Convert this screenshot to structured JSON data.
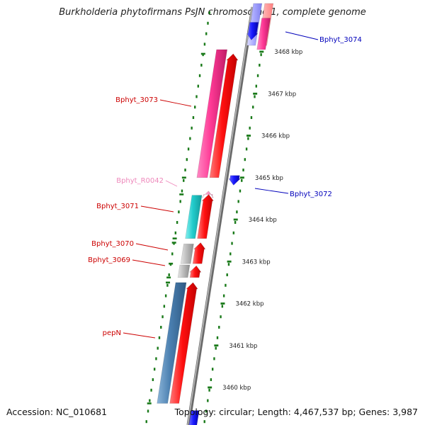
{
  "title": "Burkholderia phytofirmans PsJN chromosome 1, complete genome",
  "footer": {
    "accession": "Accession: NC_010681",
    "topology": "Topology: circular; Length: 4,467,537 bp; Genes: 3,987"
  },
  "colors": {
    "backbone": "#8c8c8c",
    "tick": "#1a7a1a",
    "forward_gene": "#ff0000",
    "reverse_gene": "#0000ee",
    "locus_red": "#cc0000",
    "locus_blue": "#0000bb",
    "locus_pink": "#ee88bb",
    "cds_magenta": "#ff3a96",
    "cds_cyan": "#22cccc",
    "cds_grey": "#bbbbbb",
    "cds_steelblue": "#4a7fb0"
  },
  "genes": [
    {
      "id": "Bphyt_3074",
      "strand": "reverse",
      "label_color": "blue",
      "start_kbp": 3468.45,
      "end_kbp": 3469.2,
      "arrow": "start"
    },
    {
      "id": "Bphyt_3073",
      "strand": "forward",
      "label_color": "red",
      "start_kbp": 3465.05,
      "end_kbp": 3467.95,
      "arrow": "end"
    },
    {
      "id": "Bphyt_R0042",
      "strand": "forward",
      "label_color": "pink",
      "start_kbp": 3464.62,
      "end_kbp": 3464.7,
      "arrow": "end"
    },
    {
      "id": "Bphyt_3072",
      "strand": "reverse",
      "label_color": "blue",
      "start_kbp": 3464.8,
      "end_kbp": 3465.0,
      "arrow": "start"
    },
    {
      "id": "Bphyt_3071",
      "strand": "forward",
      "label_color": "red",
      "start_kbp": 3463.6,
      "end_kbp": 3464.6,
      "arrow": "end"
    },
    {
      "id": "Bphyt_3070",
      "strand": "forward",
      "label_color": "red",
      "start_kbp": 3463.0,
      "end_kbp": 3463.45,
      "arrow": "end"
    },
    {
      "id": "Bphyt_3069",
      "strand": "forward",
      "label_color": "red",
      "start_kbp": 3462.65,
      "end_kbp": 3462.95,
      "arrow": "end"
    },
    {
      "id": "pepN",
      "strand": "forward",
      "label_color": "red",
      "start_kbp": 3459.7,
      "end_kbp": 3462.5,
      "arrow": "end"
    },
    {
      "id": "",
      "strand": "reverse",
      "label_color": "blue",
      "start_kbp": 3459.1,
      "end_kbp": 3459.45,
      "arrow": "none"
    }
  ],
  "tick_labels": [
    "3460 kbp",
    "3461 kbp",
    "3462 kbp",
    "3463 kbp",
    "3464 kbp",
    "3465 kbp",
    "3466 kbp",
    "3467 kbp",
    "3468 kbp"
  ],
  "tick_values_kbp": [
    3460,
    3461,
    3462,
    3463,
    3464,
    3465,
    3466,
    3467,
    3468
  ]
}
